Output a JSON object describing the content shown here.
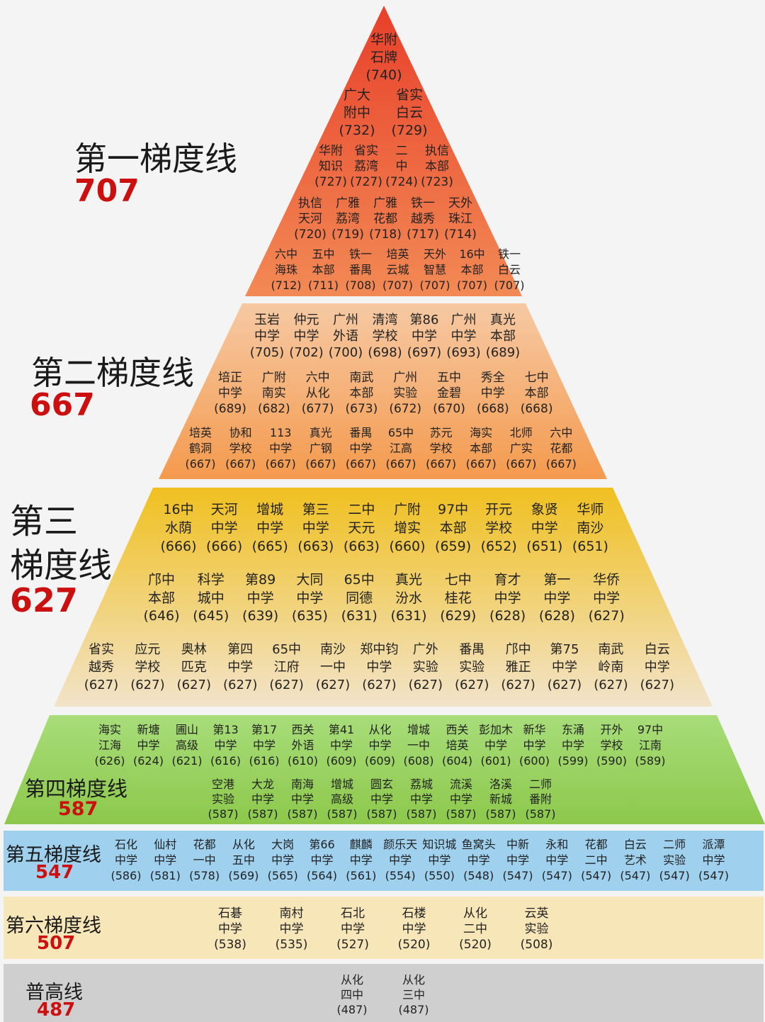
{
  "tiers": [
    {
      "id": "t1",
      "title": "第一梯度线",
      "score": "707",
      "rows": [
        [
          {
            "l1": "华附",
            "l2": "石牌",
            "score": "(740)"
          }
        ],
        [
          {
            "l1": "广大",
            "l2": "附中",
            "score": "(732)"
          },
          {
            "l1": "省实",
            "l2": "白云",
            "score": "(729)"
          }
        ],
        [
          {
            "l1": "华附",
            "l2": "知识",
            "score": "(727)"
          },
          {
            "l1": "省实",
            "l2": "荔湾",
            "score": "(727)"
          },
          {
            "l1": "二",
            "l2": "中",
            "score": "(724)"
          },
          {
            "l1": "执信",
            "l2": "本部",
            "score": "(723)"
          }
        ],
        [
          {
            "l1": "执信",
            "l2": "天河",
            "score": "(720)"
          },
          {
            "l1": "广雅",
            "l2": "荔湾",
            "score": "(719)"
          },
          {
            "l1": "广雅",
            "l2": "花都",
            "score": "(718)"
          },
          {
            "l1": "铁一",
            "l2": "越秀",
            "score": "(717)"
          },
          {
            "l1": "天外",
            "l2": "珠江",
            "score": "(714)"
          }
        ],
        [
          {
            "l1": "六中",
            "l2": "海珠",
            "score": "(712)"
          },
          {
            "l1": "五中",
            "l2": "本部",
            "score": "(711)"
          },
          {
            "l1": "铁一",
            "l2": "番禺",
            "score": "(708)"
          },
          {
            "l1": "培英",
            "l2": "云城",
            "score": "(707)"
          },
          {
            "l1": "天外",
            "l2": "智慧",
            "score": "(707)"
          },
          {
            "l1": "16中",
            "l2": "本部",
            "score": "(707)"
          },
          {
            "l1": "铁一",
            "l2": "白云",
            "score": "(707)"
          }
        ]
      ]
    },
    {
      "id": "t2",
      "title": "第二梯度线",
      "score": "667",
      "rows": [
        [
          {
            "l1": "玉岩",
            "l2": "中学",
            "score": "(705)"
          },
          {
            "l1": "仲元",
            "l2": "中学",
            "score": "(702)"
          },
          {
            "l1": "广州",
            "l2": "外语",
            "score": "(700)"
          },
          {
            "l1": "清湾",
            "l2": "学校",
            "score": "(698)"
          },
          {
            "l1": "第86",
            "l2": "中学",
            "score": "(697)"
          },
          {
            "l1": "广州",
            "l2": "中学",
            "score": "(693)"
          },
          {
            "l1": "真光",
            "l2": "本部",
            "score": "(689)"
          }
        ],
        [
          {
            "l1": "培正",
            "l2": "中学",
            "score": "(689)"
          },
          {
            "l1": "广附",
            "l2": "南实",
            "score": "(682)"
          },
          {
            "l1": "六中",
            "l2": "从化",
            "score": "(677)"
          },
          {
            "l1": "南武",
            "l2": "本部",
            "score": "(673)"
          },
          {
            "l1": "广州",
            "l2": "实验",
            "score": "(672)"
          },
          {
            "l1": "五中",
            "l2": "金碧",
            "score": "(670)"
          },
          {
            "l1": "秀全",
            "l2": "中学",
            "score": "(668)"
          },
          {
            "l1": "七中",
            "l2": "本部",
            "score": "(668)"
          }
        ],
        [
          {
            "l1": "培英",
            "l2": "鹤洞",
            "score": "(667)"
          },
          {
            "l1": "协和",
            "l2": "学校",
            "score": "(667)"
          },
          {
            "l1": "113",
            "l2": "中学",
            "score": "(667)"
          },
          {
            "l1": "真光",
            "l2": "广钢",
            "score": "(667)"
          },
          {
            "l1": "番禺",
            "l2": "中学",
            "score": "(667)"
          },
          {
            "l1": "65中",
            "l2": "江高",
            "score": "(667)"
          },
          {
            "l1": "苏元",
            "l2": "学校",
            "score": "(667)"
          },
          {
            "l1": "海实",
            "l2": "本部",
            "score": "(667)"
          },
          {
            "l1": "北师",
            "l2": "广实",
            "score": "(667)"
          },
          {
            "l1": "六中",
            "l2": "花都",
            "score": "(667)"
          }
        ]
      ]
    },
    {
      "id": "t3",
      "title_l1": "第三",
      "title_l2": "梯度线",
      "score": "627",
      "rows": [
        [
          {
            "l1": "16中",
            "l2": "水荫",
            "score": "(666)"
          },
          {
            "l1": "天河",
            "l2": "中学",
            "score": "(666)"
          },
          {
            "l1": "增城",
            "l2": "中学",
            "score": "(665)"
          },
          {
            "l1": "第三",
            "l2": "中学",
            "score": "(663)"
          },
          {
            "l1": "二中",
            "l2": "天元",
            "score": "(663)"
          },
          {
            "l1": "广附",
            "l2": "增实",
            "score": "(660)"
          },
          {
            "l1": "97中",
            "l2": "本部",
            "score": "(659)"
          },
          {
            "l1": "开元",
            "l2": "学校",
            "score": "(652)"
          },
          {
            "l1": "象贤",
            "l2": "中学",
            "score": "(651)"
          },
          {
            "l1": "华师",
            "l2": "南沙",
            "score": "(651)"
          }
        ],
        [
          {
            "l1": "邝中",
            "l2": "本部",
            "score": "(646)"
          },
          {
            "l1": "科学",
            "l2": "城中",
            "score": "(645)"
          },
          {
            "l1": "第89",
            "l2": "中学",
            "score": "(639)"
          },
          {
            "l1": "大同",
            "l2": "中学",
            "score": "(635)"
          },
          {
            "l1": "65中",
            "l2": "同德",
            "score": "(631)"
          },
          {
            "l1": "真光",
            "l2": "汾水",
            "score": "(631)"
          },
          {
            "l1": "七中",
            "l2": "桂花",
            "score": "(629)"
          },
          {
            "l1": "育才",
            "l2": "中学",
            "score": "(628)"
          },
          {
            "l1": "第一",
            "l2": "中学",
            "score": "(628)"
          },
          {
            "l1": "华侨",
            "l2": "中学",
            "score": "(627)"
          }
        ],
        [
          {
            "l1": "省实",
            "l2": "越秀",
            "score": "(627)"
          },
          {
            "l1": "应元",
            "l2": "学校",
            "score": "(627)"
          },
          {
            "l1": "奥林",
            "l2": "匹克",
            "score": "(627)"
          },
          {
            "l1": "第四",
            "l2": "中学",
            "score": "(627)"
          },
          {
            "l1": "65中",
            "l2": "江府",
            "score": "(627)"
          },
          {
            "l1": "南沙",
            "l2": "一中",
            "score": "(627)"
          },
          {
            "l1": "郑中钧",
            "l2": "中学",
            "score": "(627)"
          },
          {
            "l1": "广外",
            "l2": "实验",
            "score": "(627)"
          },
          {
            "l1": "番禺",
            "l2": "实验",
            "score": "(627)"
          },
          {
            "l1": "邝中",
            "l2": "雅正",
            "score": "(627)"
          },
          {
            "l1": "第75",
            "l2": "中学",
            "score": "(627)"
          },
          {
            "l1": "南武",
            "l2": "岭南",
            "score": "(627)"
          },
          {
            "l1": "白云",
            "l2": "中学",
            "score": "(627)"
          }
        ]
      ]
    },
    {
      "id": "t4",
      "title": "第四梯度线",
      "score": "587",
      "rows": [
        [
          {
            "l1": "海实",
            "l2": "江海",
            "score": "(626)"
          },
          {
            "l1": "新塘",
            "l2": "中学",
            "score": "(624)"
          },
          {
            "l1": "圃山",
            "l2": "高级",
            "score": "(621)"
          },
          {
            "l1": "第13",
            "l2": "中学",
            "score": "(616)"
          },
          {
            "l1": "第17",
            "l2": "中学",
            "score": "(616)"
          },
          {
            "l1": "西关",
            "l2": "外语",
            "score": "(610)"
          },
          {
            "l1": "第41",
            "l2": "中学",
            "score": "(609)"
          },
          {
            "l1": "从化",
            "l2": "中学",
            "score": "(609)"
          },
          {
            "l1": "增城",
            "l2": "一中",
            "score": "(608)"
          },
          {
            "l1": "西关",
            "l2": "培英",
            "score": "(604)"
          },
          {
            "l1": "彭加木",
            "l2": "中学",
            "score": "(601)"
          },
          {
            "l1": "新华",
            "l2": "中学",
            "score": "(600)"
          },
          {
            "l1": "东涌",
            "l2": "中学",
            "score": "(599)"
          },
          {
            "l1": "开外",
            "l2": "学校",
            "score": "(590)"
          },
          {
            "l1": "97中",
            "l2": "江南",
            "score": "(589)"
          }
        ],
        [
          {
            "l1": "空港",
            "l2": "实验",
            "score": "(587)"
          },
          {
            "l1": "大龙",
            "l2": "中学",
            "score": "(587)"
          },
          {
            "l1": "南海",
            "l2": "中学",
            "score": "(587)"
          },
          {
            "l1": "增城",
            "l2": "高级",
            "score": "(587)"
          },
          {
            "l1": "圆玄",
            "l2": "中学",
            "score": "(587)"
          },
          {
            "l1": "荔城",
            "l2": "中学",
            "score": "(587)"
          },
          {
            "l1": "流溪",
            "l2": "中学",
            "score": "(587)"
          },
          {
            "l1": "洛溪",
            "l2": "新城",
            "score": "(587)"
          },
          {
            "l1": "二师",
            "l2": "番附",
            "score": "(587)"
          }
        ]
      ]
    },
    {
      "id": "t5",
      "title": "第五梯度线",
      "score": "547",
      "rows": [
        [
          {
            "l1": "石化",
            "l2": "中学",
            "score": "(586)"
          },
          {
            "l1": "仙村",
            "l2": "中学",
            "score": "(581)"
          },
          {
            "l1": "花都",
            "l2": "一中",
            "score": "(578)"
          },
          {
            "l1": "从化",
            "l2": "五中",
            "score": "(569)"
          },
          {
            "l1": "大岗",
            "l2": "中学",
            "score": "(565)"
          },
          {
            "l1": "第66",
            "l2": "中学",
            "score": "(564)"
          },
          {
            "l1": "麒麟",
            "l2": "中学",
            "score": "(561)"
          },
          {
            "l1": "颜乐天",
            "l2": "中学",
            "score": "(554)"
          },
          {
            "l1": "知识城",
            "l2": "中学",
            "score": "(550)"
          },
          {
            "l1": "鱼窝头",
            "l2": "中学",
            "score": "(548)"
          },
          {
            "l1": "中新",
            "l2": "中学",
            "score": "(547)"
          },
          {
            "l1": "永和",
            "l2": "中学",
            "score": "(547)"
          },
          {
            "l1": "花都",
            "l2": "二中",
            "score": "(547)"
          },
          {
            "l1": "白云",
            "l2": "艺术",
            "score": "(547)"
          },
          {
            "l1": "二师",
            "l2": "实验",
            "score": "(547)"
          },
          {
            "l1": "派潭",
            "l2": "中学",
            "score": "(547)"
          }
        ]
      ]
    },
    {
      "id": "t6",
      "title": "第六梯度线",
      "score": "507",
      "rows": [
        [
          {
            "l1": "石碁",
            "l2": "中学",
            "score": "(538)"
          },
          {
            "l1": "南村",
            "l2": "中学",
            "score": "(535)"
          },
          {
            "l1": "石北",
            "l2": "中学",
            "score": "(527)"
          },
          {
            "l1": "石楼",
            "l2": "中学",
            "score": "(520)"
          },
          {
            "l1": "从化",
            "l2": "二中",
            "score": "(520)"
          },
          {
            "l1": "云英",
            "l2": "实验",
            "score": "(508)"
          }
        ]
      ]
    },
    {
      "id": "t7",
      "title": "普高线",
      "score": "487",
      "rows": [
        [
          {
            "l1": "从化",
            "l2": "四中",
            "score": "(487)"
          },
          {
            "l1": "从化",
            "l2": "三中",
            "score": "(487)"
          }
        ]
      ]
    }
  ],
  "colors": {
    "t1_top": "#e8402a",
    "t1_bottom": "#f28a55",
    "t2_top": "#f6c9a3",
    "t2_bottom": "#f49a4e",
    "t3_top": "#f0c020",
    "t3_bottom": "#f2e3c9",
    "t4_top": "#a8dd7a",
    "t4_bottom": "#8cc84b",
    "t5": "#9fd0ee",
    "t6": "#f7e6b8",
    "t7": "#cfcfcf",
    "score_red": "#cc1010"
  }
}
